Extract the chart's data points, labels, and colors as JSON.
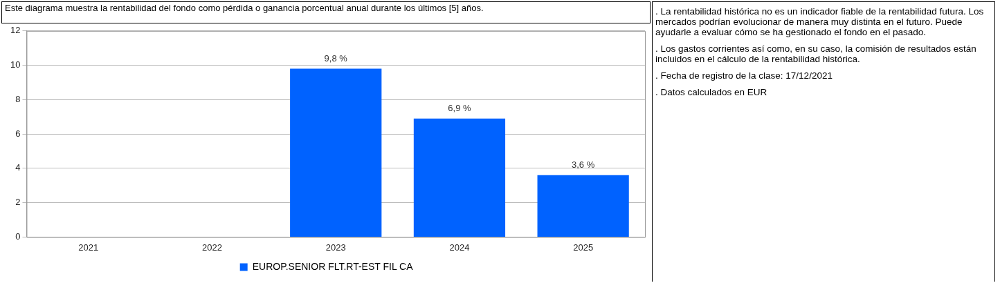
{
  "chart_data": {
    "type": "bar",
    "title": "Este diagrama muestra la rentabilidad del fondo como pérdida o ganancia porcentual anual durante los últimos [5] años.",
    "categories": [
      "2021",
      "2022",
      "2023",
      "2024",
      "2025"
    ],
    "series": [
      {
        "name": "EUROP.SENIOR FLT.RT-EST FIL CA",
        "color": "#0062ff",
        "values": [
          null,
          null,
          9.8,
          6.9,
          3.6
        ],
        "value_labels": [
          null,
          null,
          "9,8 %",
          "6,9 %",
          "3,6 %"
        ]
      }
    ],
    "ylim": [
      0,
      12
    ],
    "yticks": [
      0,
      2,
      4,
      6,
      8,
      10,
      12
    ],
    "grid": "y",
    "legend": "bottom",
    "annotations": [
      ". La rentabilidad histórica no es un indicador fiable de la rentabilidad futura. Los mercados podrían evolucionar de manera muy distinta en el futuro. Puede ayudarle a evaluar cómo se ha gestionado el fondo en el pasado.",
      ". Los gastos corrientes así como, en su caso, la comisión de resultados están incluidos en el cálculo de la rentabilidad histórica.",
      ". Fecha de registro de la clase: 17/12/2021",
      ". Datos calculados en EUR"
    ]
  }
}
